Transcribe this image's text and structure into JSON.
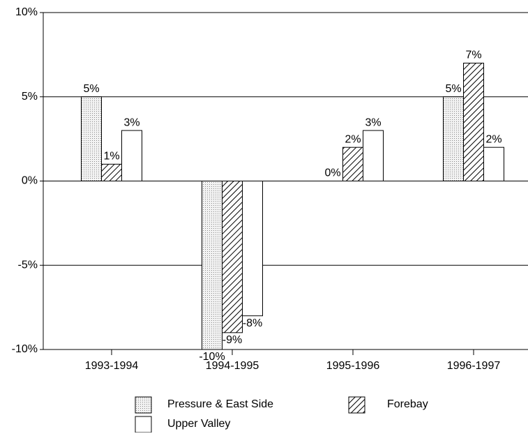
{
  "chart_data": {
    "type": "bar",
    "categories": [
      "1993-1994",
      "1994-1995",
      "1995-1996",
      "1996-1997"
    ],
    "series": [
      {
        "name": "Pressure & East Side",
        "color": "#000000",
        "pattern": "dots",
        "values": [
          5,
          -10,
          0,
          5
        ],
        "value_labels": [
          "5%",
          "-10%",
          "0%",
          "5%"
        ]
      },
      {
        "name": "Forebay",
        "color": "#000000",
        "pattern": "hatch",
        "values": [
          1,
          -9,
          2,
          7
        ],
        "value_labels": [
          "1%",
          "-9%",
          "2%",
          "7%"
        ]
      },
      {
        "name": "Upper Valley",
        "color": "#000000",
        "pattern": "none",
        "values": [
          3,
          -8,
          3,
          2
        ],
        "value_labels": [
          "3%",
          "-8%",
          "3%",
          "2%"
        ]
      }
    ],
    "ylim": [
      -10,
      10
    ],
    "yticks": [
      {
        "value": -10,
        "label": "-10%"
      },
      {
        "value": -5,
        "label": "-5%"
      },
      {
        "value": 0,
        "label": "0%"
      },
      {
        "value": 5,
        "label": "5%"
      },
      {
        "value": 10,
        "label": "10%"
      }
    ],
    "grid": true
  }
}
